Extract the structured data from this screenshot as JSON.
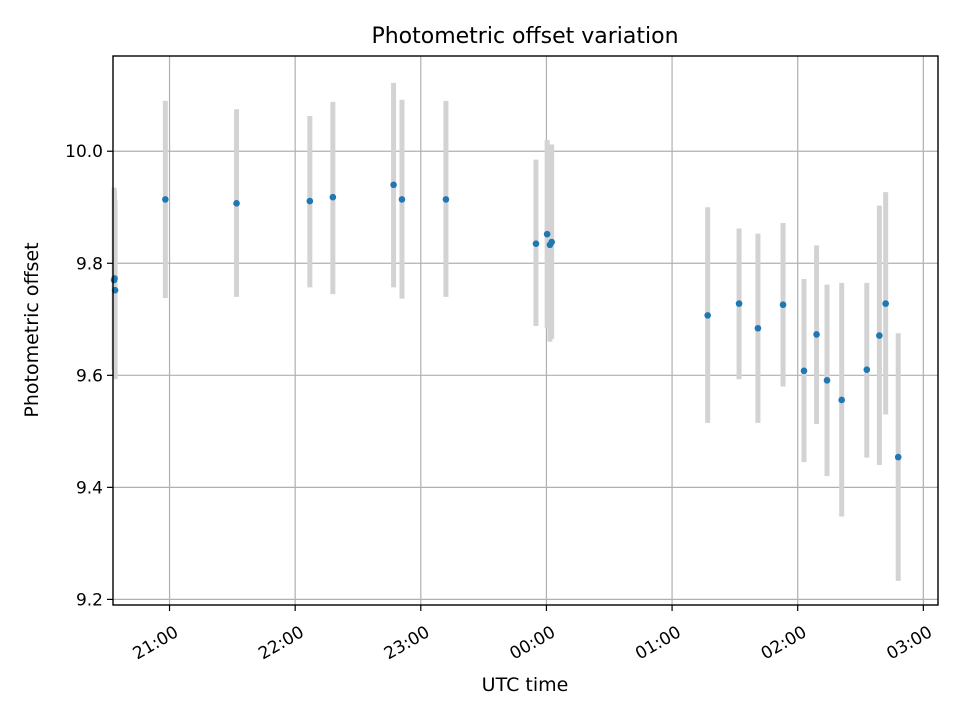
{
  "chart_data": {
    "type": "scatter",
    "title": "Photometric offset variation",
    "xlabel": "UTC time",
    "ylabel": "Photometric offset",
    "x_is_time": true,
    "xlim": [
      "20:33",
      "03:07"
    ],
    "ylim": [
      9.19,
      10.17
    ],
    "yticks": [
      9.2,
      9.4,
      9.6,
      9.8,
      10.0
    ],
    "ytick_labels": [
      "9.2",
      "9.4",
      "9.6",
      "9.8",
      "10.0"
    ],
    "xticks": [
      "21:00",
      "22:00",
      "23:00",
      "00:00",
      "01:00",
      "02:00",
      "03:00"
    ],
    "xtick_labels": [
      "21:00",
      "22:00",
      "23:00",
      "00:00",
      "01:00",
      "02:00",
      "03:00"
    ],
    "xtick_rotation_deg": 30,
    "grid": true,
    "errorbar_color": "#d3d3d3",
    "marker_color": "#1f77b4",
    "points": [
      {
        "x": "20:33:30",
        "y": 9.77,
        "err_low": 9.61,
        "err_high": 9.935
      },
      {
        "x": "20:33:45",
        "y": 9.773,
        "err_low": 9.615,
        "err_high": 9.93
      },
      {
        "x": "20:34:00",
        "y": 9.752,
        "err_low": 9.593,
        "err_high": 9.912
      },
      {
        "x": "20:58",
        "y": 9.914,
        "err_low": 9.738,
        "err_high": 10.09
      },
      {
        "x": "21:32",
        "y": 9.907,
        "err_low": 9.74,
        "err_high": 10.075
      },
      {
        "x": "22:07",
        "y": 9.911,
        "err_low": 9.757,
        "err_high": 10.063
      },
      {
        "x": "22:18",
        "y": 9.918,
        "err_low": 9.745,
        "err_high": 10.088
      },
      {
        "x": "22:47",
        "y": 9.94,
        "err_low": 9.757,
        "err_high": 10.122
      },
      {
        "x": "22:51",
        "y": 9.914,
        "err_low": 9.737,
        "err_high": 10.092
      },
      {
        "x": "23:12",
        "y": 9.914,
        "err_low": 9.74,
        "err_high": 10.09
      },
      {
        "x": "23:55",
        "y": 9.835,
        "err_low": 9.688,
        "err_high": 9.985
      },
      {
        "x": "00:00:20",
        "y": 9.852,
        "err_low": 9.685,
        "err_high": 10.02
      },
      {
        "x": "00:01:40",
        "y": 9.833,
        "err_low": 9.66,
        "err_high": 10.008
      },
      {
        "x": "00:02:30",
        "y": 9.838,
        "err_low": 9.665,
        "err_high": 10.012
      },
      {
        "x": "01:17",
        "y": 9.707,
        "err_low": 9.515,
        "err_high": 9.9
      },
      {
        "x": "01:32",
        "y": 9.728,
        "err_low": 9.593,
        "err_high": 9.862
      },
      {
        "x": "01:41",
        "y": 9.684,
        "err_low": 9.515,
        "err_high": 9.853
      },
      {
        "x": "01:53",
        "y": 9.726,
        "err_low": 9.58,
        "err_high": 9.872
      },
      {
        "x": "02:03",
        "y": 9.608,
        "err_low": 9.445,
        "err_high": 9.772
      },
      {
        "x": "02:09",
        "y": 9.673,
        "err_low": 9.513,
        "err_high": 9.832
      },
      {
        "x": "02:14",
        "y": 9.591,
        "err_low": 9.42,
        "err_high": 9.762
      },
      {
        "x": "02:21",
        "y": 9.556,
        "err_low": 9.348,
        "err_high": 9.765
      },
      {
        "x": "02:33",
        "y": 9.61,
        "err_low": 9.453,
        "err_high": 9.765
      },
      {
        "x": "02:39",
        "y": 9.671,
        "err_low": 9.44,
        "err_high": 9.903
      },
      {
        "x": "02:42",
        "y": 9.728,
        "err_low": 9.53,
        "err_high": 9.927
      },
      {
        "x": "02:48",
        "y": 9.454,
        "err_low": 9.233,
        "err_high": 9.675
      }
    ]
  }
}
